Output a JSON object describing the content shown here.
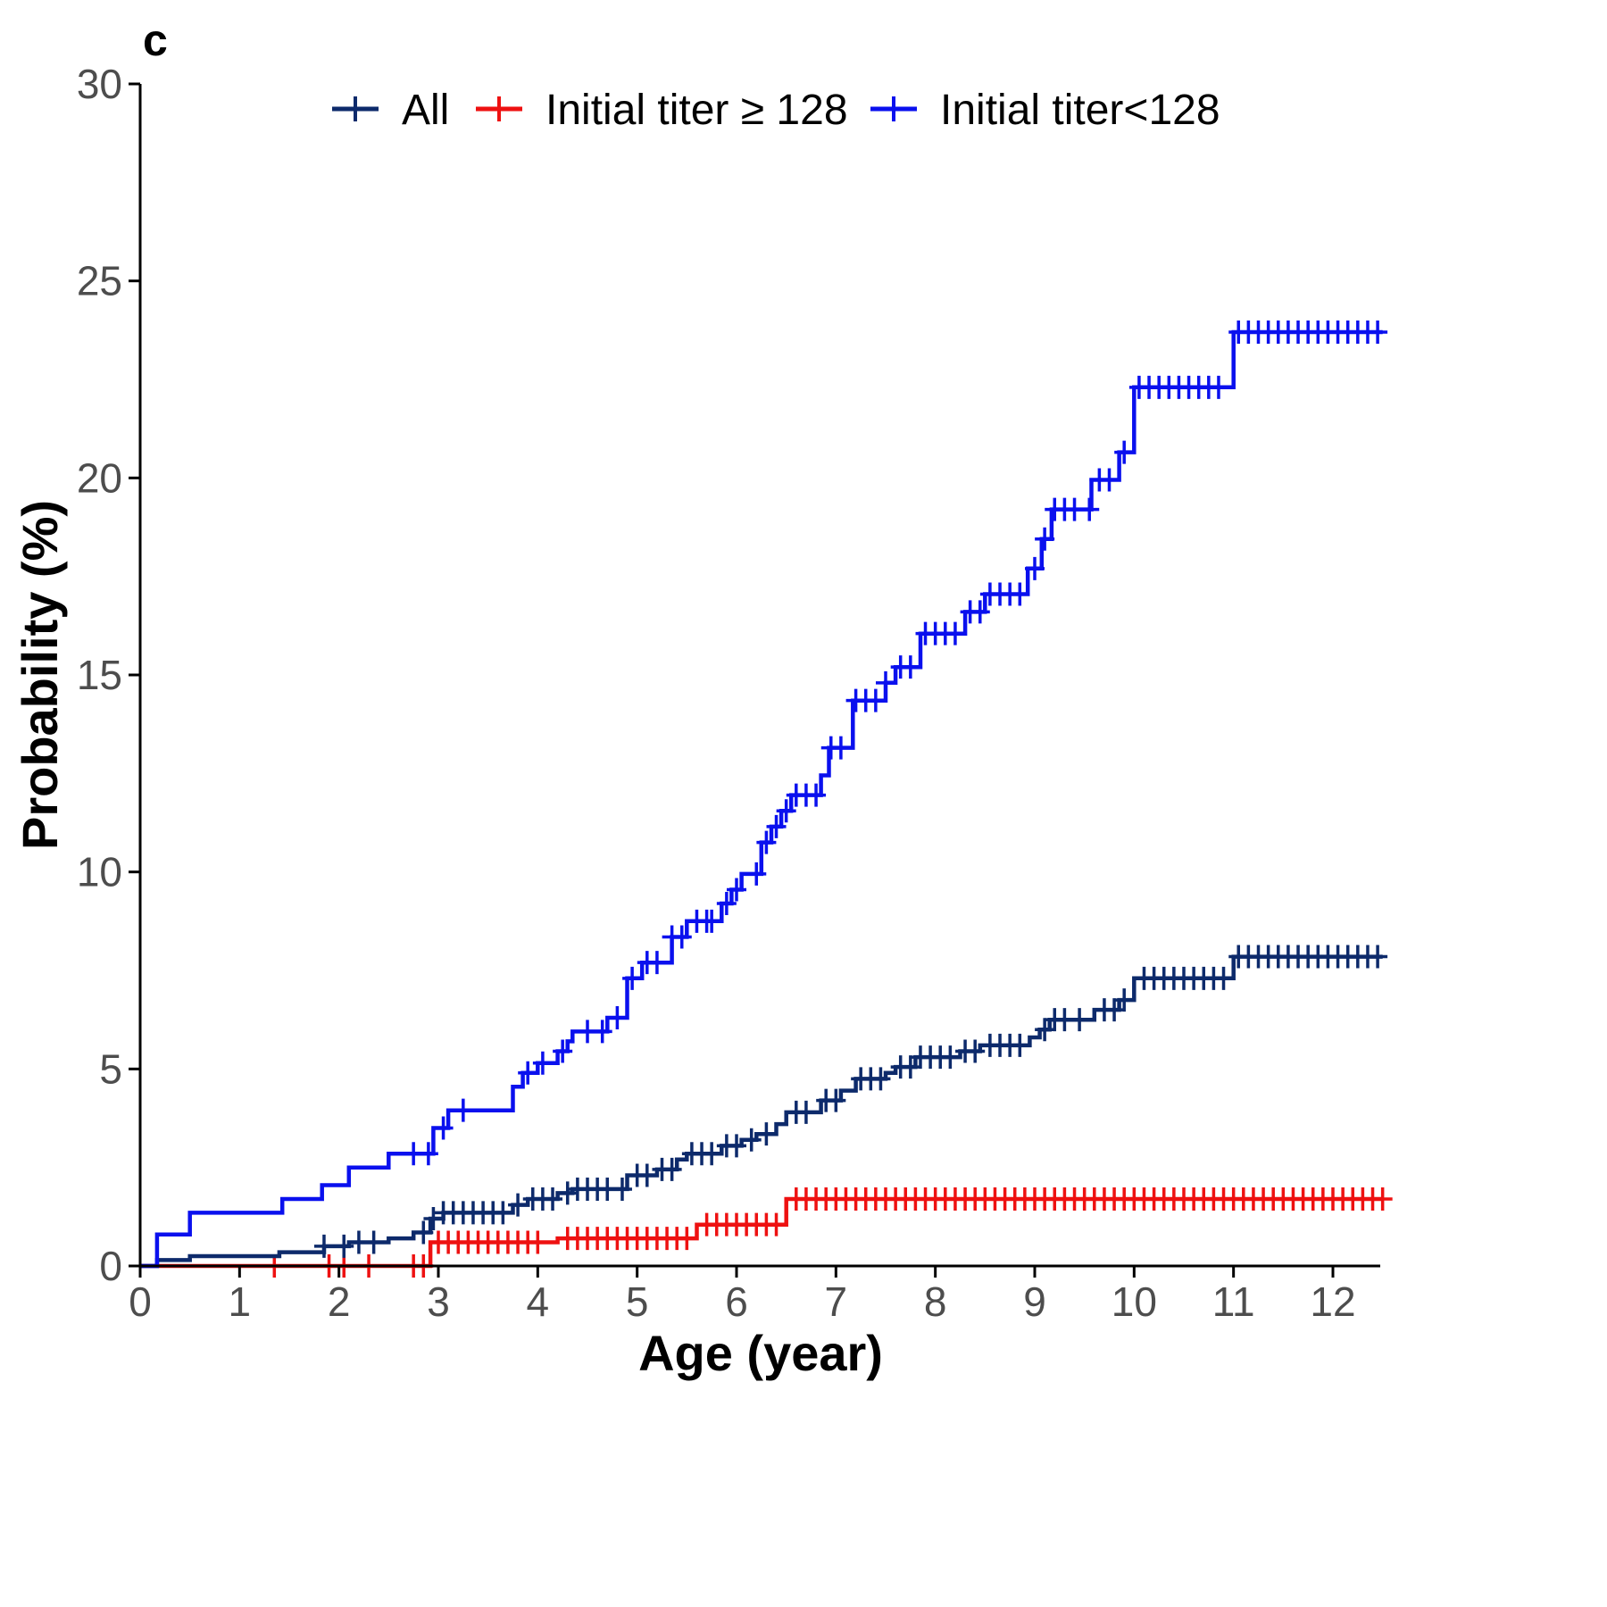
{
  "chart_data": {
    "type": "line",
    "subtype": "step (Kaplan-Meier cumulative incidence)",
    "panel_label": "c",
    "title": "",
    "xlabel": "Age (year)",
    "ylabel": "Probability (%)",
    "xlim": [
      0,
      12.5
    ],
    "ylim": [
      0,
      30
    ],
    "x_ticks": [
      0,
      1,
      2,
      3,
      4,
      5,
      6,
      7,
      8,
      9,
      10,
      11,
      12
    ],
    "y_ticks": [
      0,
      5,
      10,
      15,
      20,
      25,
      30
    ],
    "grid": false,
    "legend_position": "top",
    "series": [
      {
        "name": "All",
        "color": "#0d2a6b",
        "steps": [
          [
            0,
            0
          ],
          [
            0.17,
            0.15
          ],
          [
            0.5,
            0.25
          ],
          [
            1.4,
            0.35
          ],
          [
            1.85,
            0.5
          ],
          [
            2.1,
            0.6
          ],
          [
            2.5,
            0.7
          ],
          [
            2.75,
            0.85
          ],
          [
            2.92,
            1.2
          ],
          [
            3.05,
            1.35
          ],
          [
            3.75,
            1.55
          ],
          [
            3.9,
            1.7
          ],
          [
            4.2,
            1.85
          ],
          [
            4.35,
            1.95
          ],
          [
            4.9,
            2.3
          ],
          [
            5.2,
            2.45
          ],
          [
            5.4,
            2.7
          ],
          [
            5.5,
            2.85
          ],
          [
            5.85,
            3.05
          ],
          [
            6.05,
            3.2
          ],
          [
            6.2,
            3.35
          ],
          [
            6.4,
            3.6
          ],
          [
            6.5,
            3.9
          ],
          [
            6.85,
            4.2
          ],
          [
            7.05,
            4.45
          ],
          [
            7.2,
            4.75
          ],
          [
            7.5,
            4.9
          ],
          [
            7.6,
            5.05
          ],
          [
            7.8,
            5.3
          ],
          [
            8.25,
            5.45
          ],
          [
            8.45,
            5.6
          ],
          [
            8.95,
            5.8
          ],
          [
            9.05,
            6.0
          ],
          [
            9.15,
            6.25
          ],
          [
            9.6,
            6.5
          ],
          [
            9.85,
            6.75
          ],
          [
            10.0,
            7.3
          ],
          [
            11.0,
            7.85
          ],
          [
            12.5,
            7.85
          ]
        ],
        "censor_x": [
          1.85,
          2.05,
          2.2,
          2.35,
          2.85,
          2.95,
          3.05,
          3.15,
          3.25,
          3.35,
          3.45,
          3.55,
          3.65,
          3.8,
          3.95,
          4.05,
          4.15,
          4.3,
          4.4,
          4.5,
          4.6,
          4.7,
          4.85,
          5.0,
          5.1,
          5.25,
          5.35,
          5.55,
          5.65,
          5.75,
          5.9,
          6.0,
          6.15,
          6.3,
          6.6,
          6.7,
          6.9,
          7.0,
          7.25,
          7.35,
          7.45,
          7.65,
          7.75,
          7.85,
          7.95,
          8.05,
          8.15,
          8.3,
          8.4,
          8.55,
          8.65,
          8.75,
          8.85,
          9.1,
          9.2,
          9.3,
          9.45,
          9.7,
          9.8,
          9.9,
          10.1,
          10.2,
          10.3,
          10.4,
          10.5,
          10.6,
          10.7,
          10.8,
          10.9,
          11.05,
          11.15,
          11.25,
          11.35,
          11.45,
          11.55,
          11.65,
          11.75,
          11.85,
          11.95,
          12.05,
          12.15,
          12.25,
          12.35,
          12.45
        ]
      },
      {
        "name": "Initial titer ≥ 128",
        "color": "#ee1111",
        "steps": [
          [
            0,
            0
          ],
          [
            2.92,
            0.6
          ],
          [
            4.2,
            0.7
          ],
          [
            5.6,
            1.05
          ],
          [
            6.5,
            1.7
          ],
          [
            12.5,
            1.7
          ]
        ],
        "censor_x": [
          1.35,
          1.9,
          2.05,
          2.3,
          2.75,
          2.85,
          3.0,
          3.1,
          3.2,
          3.3,
          3.4,
          3.5,
          3.6,
          3.7,
          3.8,
          3.9,
          4.0,
          4.3,
          4.4,
          4.5,
          4.6,
          4.7,
          4.8,
          4.9,
          5.0,
          5.1,
          5.2,
          5.3,
          5.4,
          5.5,
          5.7,
          5.8,
          5.9,
          6.0,
          6.1,
          6.2,
          6.3,
          6.4,
          6.6,
          6.7,
          6.8,
          6.9,
          7.0,
          7.1,
          7.2,
          7.3,
          7.4,
          7.5,
          7.6,
          7.7,
          7.8,
          7.9,
          8.0,
          8.1,
          8.2,
          8.3,
          8.4,
          8.5,
          8.6,
          8.7,
          8.8,
          8.9,
          9.0,
          9.1,
          9.2,
          9.3,
          9.4,
          9.5,
          9.6,
          9.7,
          9.8,
          9.9,
          10.0,
          10.1,
          10.2,
          10.3,
          10.4,
          10.5,
          10.6,
          10.7,
          10.8,
          10.9,
          11.0,
          11.1,
          11.2,
          11.3,
          11.4,
          11.5,
          11.6,
          11.7,
          11.8,
          11.9,
          12.0,
          12.1,
          12.2,
          12.3,
          12.4,
          12.5
        ]
      },
      {
        "name": "Initial titer<128",
        "color": "#0a10ee",
        "steps": [
          [
            0,
            0
          ],
          [
            0.17,
            0.8
          ],
          [
            0.5,
            1.35
          ],
          [
            1.43,
            1.7
          ],
          [
            1.83,
            2.05
          ],
          [
            2.1,
            2.5
          ],
          [
            2.5,
            2.85
          ],
          [
            2.95,
            3.5
          ],
          [
            3.1,
            3.95
          ],
          [
            3.75,
            4.55
          ],
          [
            3.85,
            4.9
          ],
          [
            4.0,
            5.15
          ],
          [
            4.2,
            5.45
          ],
          [
            4.3,
            5.7
          ],
          [
            4.35,
            5.95
          ],
          [
            4.7,
            6.3
          ],
          [
            4.9,
            7.3
          ],
          [
            5.05,
            7.7
          ],
          [
            5.35,
            8.35
          ],
          [
            5.5,
            8.75
          ],
          [
            5.85,
            9.2
          ],
          [
            5.95,
            9.55
          ],
          [
            6.05,
            9.95
          ],
          [
            6.25,
            10.75
          ],
          [
            6.35,
            11.15
          ],
          [
            6.45,
            11.55
          ],
          [
            6.55,
            11.95
          ],
          [
            6.85,
            12.45
          ],
          [
            6.93,
            13.15
          ],
          [
            7.17,
            14.35
          ],
          [
            7.5,
            14.8
          ],
          [
            7.6,
            15.2
          ],
          [
            7.85,
            16.05
          ],
          [
            8.3,
            16.6
          ],
          [
            8.5,
            17.05
          ],
          [
            8.93,
            17.7
          ],
          [
            9.07,
            18.45
          ],
          [
            9.17,
            19.2
          ],
          [
            9.57,
            19.95
          ],
          [
            9.85,
            20.65
          ],
          [
            10.0,
            22.3
          ],
          [
            11.0,
            23.7
          ],
          [
            12.5,
            23.7
          ]
        ],
        "censor_x": [
          2.75,
          2.9,
          3.05,
          3.25,
          3.9,
          4.05,
          4.25,
          4.5,
          4.65,
          4.8,
          4.95,
          5.1,
          5.2,
          5.35,
          5.45,
          5.6,
          5.7,
          5.75,
          5.9,
          6.0,
          6.2,
          6.3,
          6.4,
          6.5,
          6.6,
          6.7,
          6.8,
          6.95,
          7.05,
          7.2,
          7.3,
          7.4,
          7.5,
          7.65,
          7.75,
          7.9,
          8.0,
          8.1,
          8.2,
          8.35,
          8.45,
          8.55,
          8.65,
          8.75,
          8.85,
          9.0,
          9.1,
          9.2,
          9.3,
          9.4,
          9.55,
          9.65,
          9.75,
          9.9,
          10.05,
          10.15,
          10.25,
          10.35,
          10.45,
          10.55,
          10.65,
          10.75,
          10.85,
          11.05,
          11.15,
          11.25,
          11.35,
          11.45,
          11.55,
          11.65,
          11.75,
          11.85,
          11.95,
          12.05,
          12.15,
          12.25,
          12.35,
          12.45
        ]
      }
    ]
  }
}
